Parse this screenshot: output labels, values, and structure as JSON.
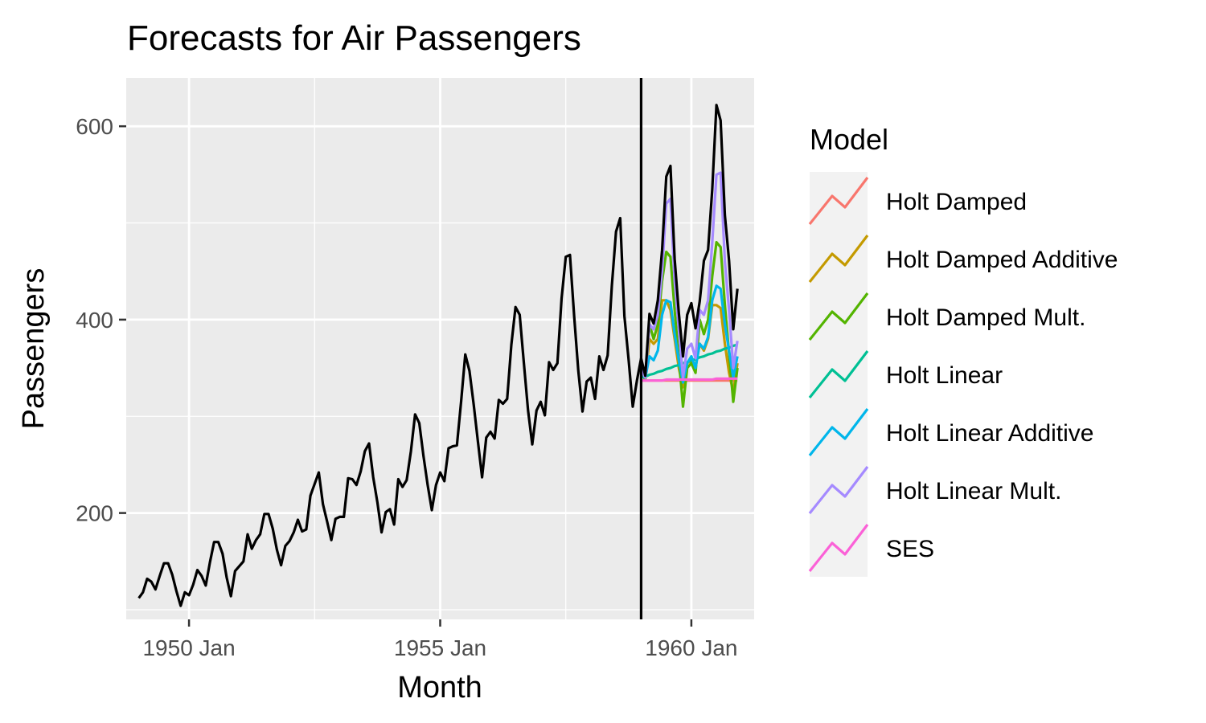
{
  "chart_data": {
    "type": "line",
    "title": "Forecasts for Air Passengers",
    "xlabel": "Month",
    "ylabel": "Passengers",
    "x_ticks": [
      "1950 Jan",
      "1955 Jan",
      "1960 Jan"
    ],
    "y_ticks": [
      200,
      400,
      600
    ],
    "xlim": [
      "1948-10",
      "1961-04"
    ],
    "ylim": [
      90,
      650
    ],
    "forecast_start": "1959-01",
    "grid": true,
    "legend": {
      "title": "Model",
      "position": "right",
      "entries": [
        {
          "name": "Holt Damped",
          "color": "#F8766D"
        },
        {
          "name": "Holt Damped Additive",
          "color": "#C49A00"
        },
        {
          "name": "Holt Damped Mult.",
          "color": "#53B400"
        },
        {
          "name": "Holt Linear",
          "color": "#00C094"
        },
        {
          "name": "Holt Linear Additive",
          "color": "#00B6EB"
        },
        {
          "name": "Holt Linear Mult.",
          "color": "#A58AFF"
        },
        {
          "name": "SES",
          "color": "#FB61D7"
        }
      ]
    },
    "actual": {
      "color": "#000000",
      "start": "1949-01",
      "values": [
        112,
        118,
        132,
        129,
        121,
        135,
        148,
        148,
        136,
        119,
        104,
        118,
        115,
        126,
        141,
        135,
        125,
        149,
        170,
        170,
        158,
        133,
        114,
        140,
        145,
        150,
        178,
        163,
        172,
        178,
        199,
        199,
        184,
        162,
        146,
        166,
        171,
        180,
        193,
        181,
        183,
        218,
        230,
        242,
        209,
        191,
        172,
        194,
        196,
        196,
        236,
        235,
        229,
        243,
        264,
        272,
        237,
        211,
        180,
        201,
        204,
        188,
        235,
        227,
        234,
        264,
        302,
        293,
        259,
        229,
        203,
        229,
        242,
        233,
        267,
        269,
        270,
        315,
        364,
        347,
        312,
        274,
        237,
        278,
        284,
        277,
        317,
        313,
        318,
        374,
        413,
        405,
        355,
        306,
        271,
        306,
        315,
        301,
        356,
        348,
        355,
        422,
        465,
        467,
        404,
        347,
        305,
        336,
        340,
        318,
        362,
        348,
        363,
        435,
        491,
        505,
        404,
        359,
        310,
        337,
        360,
        342,
        406,
        396,
        420,
        472,
        548,
        559,
        463,
        407,
        362,
        405,
        417,
        391,
        419,
        461,
        472,
        535,
        622,
        606,
        508,
        461,
        390,
        432
      ]
    },
    "forecast_months": [
      "1959-01",
      "1959-02",
      "1959-03",
      "1959-04",
      "1959-05",
      "1959-06",
      "1959-07",
      "1959-08",
      "1959-09",
      "1959-10",
      "1959-11",
      "1959-12",
      "1960-01",
      "1960-02",
      "1960-03",
      "1960-04",
      "1960-05",
      "1960-06",
      "1960-07",
      "1960-08",
      "1960-09",
      "1960-10",
      "1960-11",
      "1960-12"
    ],
    "series": [
      {
        "name": "Holt Damped",
        "values": [
          337,
          337,
          337,
          337,
          337,
          337,
          337,
          337,
          337,
          337,
          337,
          337,
          337,
          337,
          337,
          337,
          337,
          337,
          337,
          337,
          337,
          337,
          337,
          337
        ]
      },
      {
        "name": "Holt Damped Additive",
        "values": [
          345,
          338,
          380,
          375,
          380,
          420,
          420,
          410,
          380,
          350,
          330,
          355,
          358,
          352,
          375,
          368,
          380,
          415,
          415,
          412,
          375,
          345,
          325,
          355
        ]
      },
      {
        "name": "Holt Damped Mult.",
        "values": [
          345,
          338,
          395,
          380,
          395,
          440,
          470,
          465,
          410,
          360,
          310,
          350,
          355,
          345,
          400,
          385,
          400,
          445,
          480,
          475,
          415,
          365,
          315,
          350
        ]
      },
      {
        "name": "Holt Linear",
        "values": [
          340,
          341,
          343,
          344,
          346,
          347,
          349,
          350,
          352,
          353,
          355,
          356,
          358,
          359,
          361,
          362,
          364,
          365,
          367,
          368,
          370,
          371,
          373,
          374
        ]
      },
      {
        "name": "Holt Linear Additive",
        "values": [
          348,
          340,
          362,
          358,
          368,
          405,
          420,
          418,
          385,
          358,
          335,
          355,
          362,
          350,
          375,
          370,
          382,
          420,
          435,
          432,
          395,
          368,
          340,
          362
        ]
      },
      {
        "name": "Holt Linear Mult.",
        "values": [
          348,
          340,
          395,
          390,
          405,
          450,
          520,
          525,
          440,
          390,
          340,
          370,
          375,
          360,
          410,
          405,
          420,
          480,
          550,
          552,
          460,
          410,
          350,
          378
        ]
      },
      {
        "name": "SES",
        "values": [
          337,
          337,
          337,
          337,
          337,
          337,
          338,
          338,
          338,
          338,
          338,
          338,
          338,
          338,
          338,
          338,
          338,
          338,
          339,
          339,
          339,
          339,
          339,
          339
        ]
      }
    ]
  }
}
